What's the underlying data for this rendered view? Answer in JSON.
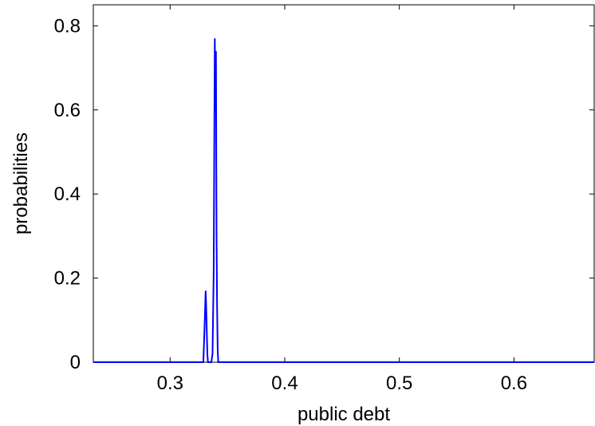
{
  "chart_data": {
    "type": "line",
    "title": "",
    "xlabel": "public debt",
    "ylabel": "probabilities",
    "xlim": [
      0.233,
      0.67
    ],
    "ylim": [
      0,
      0.85
    ],
    "xticks": [
      0.3,
      0.4,
      0.5,
      0.6
    ],
    "xtick_labels": [
      "0.3",
      "0.4",
      "0.5",
      "0.6"
    ],
    "yticks": [
      0,
      0.2,
      0.4,
      0.6,
      0.8
    ],
    "ytick_labels": [
      "0",
      "0.2",
      "0.4",
      "0.6",
      "0.8"
    ],
    "grid": false,
    "line_color": "#0000ff",
    "series": [
      {
        "x": [
          0.233,
          0.329,
          0.33,
          0.331,
          0.3315,
          0.332,
          0.3325,
          0.333,
          0.334,
          0.335,
          0.336,
          0.337,
          0.338,
          0.3385,
          0.339,
          0.3395,
          0.34,
          0.3405,
          0.341,
          0.3415,
          0.342,
          0.343,
          0.67
        ],
        "y": [
          0,
          0,
          0.08,
          0.17,
          0.13,
          0.07,
          0.02,
          0,
          0,
          0,
          0,
          0.02,
          0.21,
          0.5,
          0.77,
          0.6,
          0.74,
          0.3,
          0.13,
          0.03,
          0,
          0,
          0
        ]
      }
    ]
  }
}
